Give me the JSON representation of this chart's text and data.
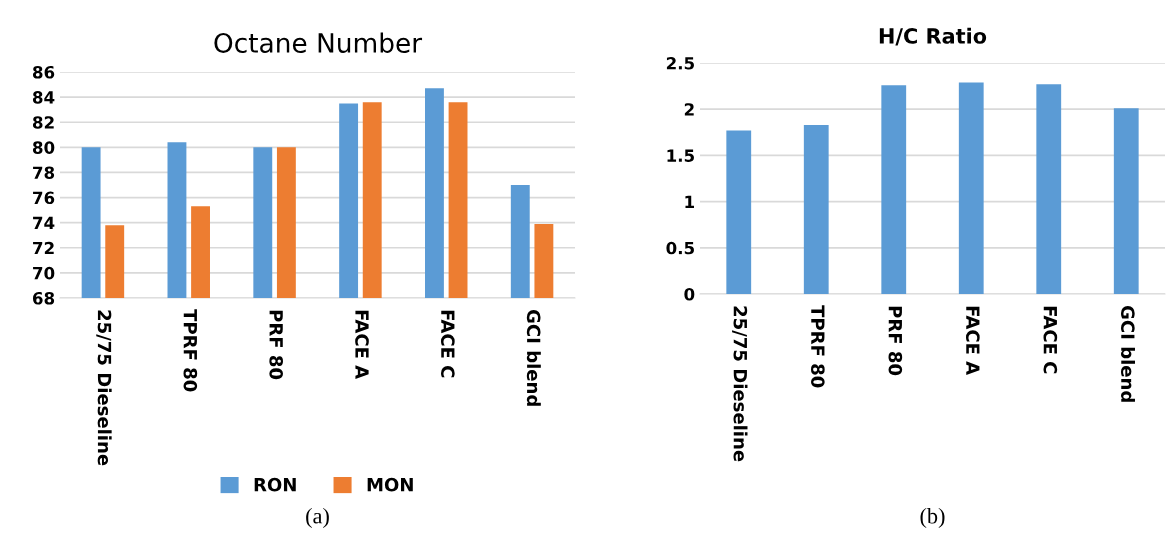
{
  "chart_data": [
    {
      "type": "bar",
      "title": "Octane Number",
      "categories": [
        "25/75 Dieseline",
        "TPRF 80",
        "PRF 80",
        "FACE A",
        "FACE C",
        "GCI blend"
      ],
      "series": [
        {
          "name": "RON",
          "color": "#5b9bd5",
          "values": [
            80,
            80.4,
            80,
            83.5,
            84.7,
            77
          ]
        },
        {
          "name": "MON",
          "color": "#ed7d31",
          "values": [
            73.8,
            75.3,
            80,
            83.6,
            83.6,
            73.9
          ]
        }
      ],
      "ylim": [
        68,
        86
      ],
      "yticks": [
        68,
        70,
        72,
        74,
        76,
        78,
        80,
        82,
        84,
        86
      ],
      "grid": "y",
      "legend": "bottom",
      "annotations": [
        "(a)"
      ]
    },
    {
      "type": "bar",
      "title": "H/C Ratio",
      "categories": [
        "25/75 Dieseline",
        "TPRF 80",
        "PRF 80",
        "FACE A",
        "FACE C",
        "GCI blend"
      ],
      "series": [
        {
          "color": "#5b9bd5",
          "values": [
            1.77,
            1.83,
            2.26,
            2.29,
            2.27,
            2.01
          ]
        }
      ],
      "ylim": [
        0,
        2.5
      ],
      "yticks": [
        0,
        0.5,
        1,
        1.5,
        2,
        2.5
      ],
      "grid": "y",
      "annotations": [
        "(b)"
      ]
    }
  ]
}
